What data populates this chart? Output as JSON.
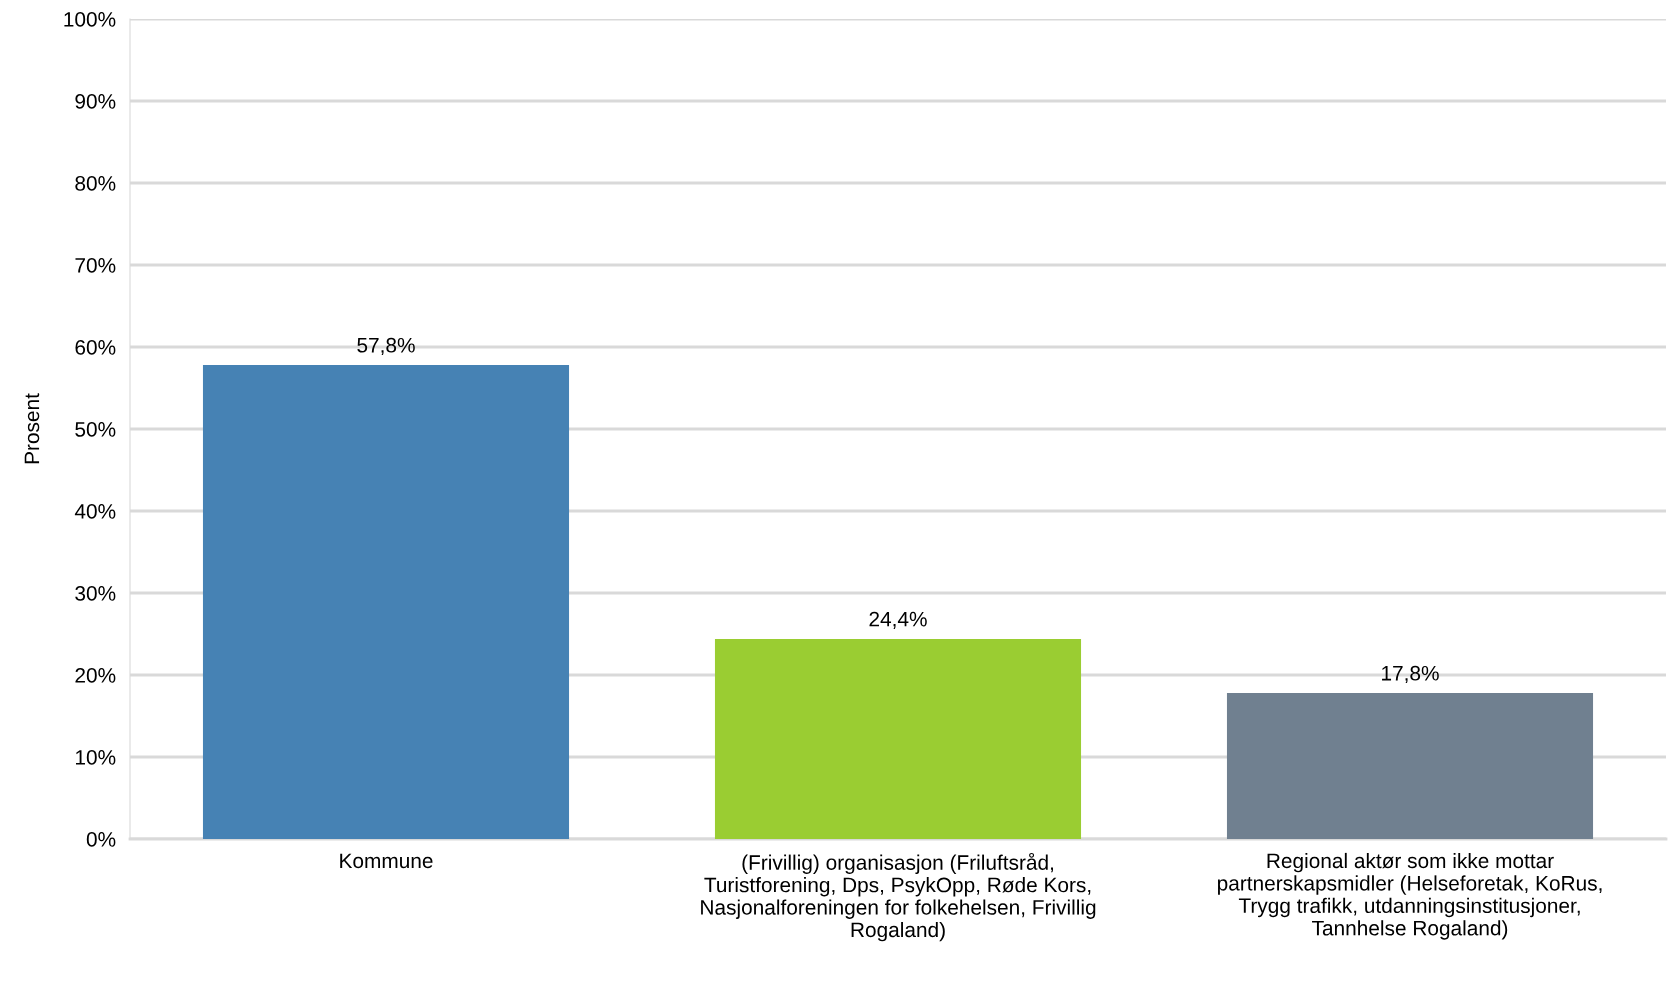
{
  "chart_data": {
    "type": "bar",
    "ylabel": "Prosent",
    "categories": [
      "Kommune",
      "(Frivillig) organisasjon (Friluftsråd,\nTuristforening, Dps, PsykOpp, Røde Kors,\nNasjonalforeningen for folkehelsen, Frivillig\nRogaland)",
      "Regional aktør som ikke mottar\npartnerskapsmidler (Helseforetak, KoRus,\nTrygg trafikk, utdanningsinstitusjoner,\nTannhelse Rogaland)"
    ],
    "values": [
      57.8,
      24.4,
      17.8
    ],
    "colors": [
      "#4682b4",
      "#9acd32",
      "#708090"
    ],
    "value_labels": [
      "57,8%",
      "24,4%",
      "17,8%"
    ],
    "ylim": [
      0,
      100
    ],
    "yticks": [
      {
        "value": 0,
        "label": "0%"
      },
      {
        "value": 10,
        "label": "10%"
      },
      {
        "value": 20,
        "label": "20%"
      },
      {
        "value": 30,
        "label": "30%"
      },
      {
        "value": 40,
        "label": "40%"
      },
      {
        "value": 50,
        "label": "50%"
      },
      {
        "value": 60,
        "label": "60%"
      },
      {
        "value": 70,
        "label": "70%"
      },
      {
        "value": 80,
        "label": "80%"
      },
      {
        "value": 90,
        "label": "90%"
      },
      {
        "value": 100,
        "label": "100%"
      }
    ],
    "grid": "y",
    "legend": false
  }
}
